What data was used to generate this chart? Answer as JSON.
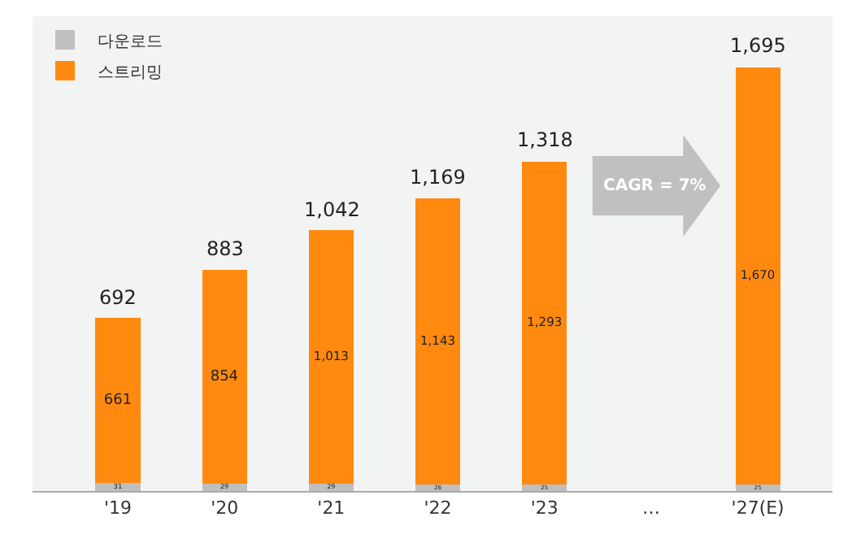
{
  "chart_data": {
    "type": "bar",
    "stacked": true,
    "categories": [
      "'19",
      "'20",
      "'21",
      "'22",
      "'23",
      "…",
      "'27(E)"
    ],
    "series": [
      {
        "name": "다운로드",
        "color": "#bfbfbf",
        "values": [
          31,
          29,
          29,
          26,
          25,
          null,
          25
        ]
      },
      {
        "name": "스트리밍",
        "color": "#ff8a0f",
        "values": [
          661,
          854,
          1013,
          1143,
          1293,
          null,
          1670
        ],
        "value_labels": [
          "661",
          "854",
          "1,013",
          "1,143",
          "1,293",
          null,
          "1,670"
        ]
      }
    ],
    "totals": [
      "692",
      "883",
      "1,042",
      "1,169",
      "1,318",
      null,
      "1,695"
    ],
    "data_labels": true,
    "legend": "top left",
    "annotations": [
      "CAGR = 7%"
    ]
  }
}
